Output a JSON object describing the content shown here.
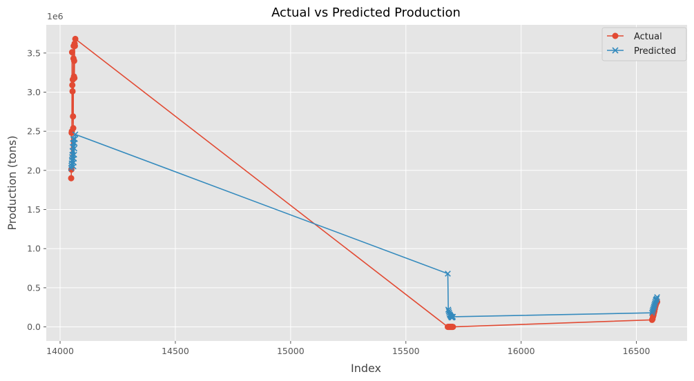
{
  "chart_data": {
    "type": "line",
    "title": "Actual vs Predicted Production",
    "xlabel": "Index",
    "ylabel": "Production (tons)",
    "y_scale_label": "1e6",
    "xlim": [
      13940,
      16720
    ],
    "ylim": [
      -180000,
      3860000
    ],
    "x_ticks": [
      14000,
      14500,
      15000,
      15500,
      16000,
      16500
    ],
    "x_tick_labels": [
      "14000",
      "14500",
      "15000",
      "15500",
      "16000",
      "16500"
    ],
    "y_ticks": [
      0,
      500000,
      1000000,
      1500000,
      2000000,
      2500000,
      3000000,
      3500000
    ],
    "y_tick_labels": [
      "0.0",
      "0.5",
      "1.0",
      "1.5",
      "2.0",
      "2.5",
      "3.0",
      "3.5"
    ],
    "grid": true,
    "legend_position": "top-right",
    "series": [
      {
        "name": "Actual",
        "color": "#E24A33",
        "marker": "circle",
        "points": [
          [
            14048,
            1900000
          ],
          [
            14049,
            2010000
          ],
          [
            14050,
            2480000
          ],
          [
            14051,
            2500000
          ],
          [
            14052,
            3510000
          ],
          [
            14053,
            3090000
          ],
          [
            14054,
            3010000
          ],
          [
            14055,
            3160000
          ],
          [
            14056,
            2690000
          ],
          [
            14057,
            2540000
          ],
          [
            14058,
            3430000
          ],
          [
            14059,
            3590000
          ],
          [
            14060,
            3200000
          ],
          [
            14061,
            3400000
          ],
          [
            14062,
            3180000
          ],
          [
            14063,
            3620000
          ],
          [
            14064,
            3590000
          ],
          [
            14066,
            3680000
          ],
          [
            15682,
            0
          ],
          [
            15684,
            0
          ],
          [
            15686,
            0
          ],
          [
            15688,
            0
          ],
          [
            15690,
            0
          ],
          [
            15692,
            0
          ],
          [
            15694,
            0
          ],
          [
            15696,
            0
          ],
          [
            15698,
            0
          ],
          [
            15700,
            0
          ],
          [
            15702,
            0
          ],
          [
            15704,
            0
          ],
          [
            16568,
            90000
          ],
          [
            16570,
            100000
          ],
          [
            16572,
            130000
          ],
          [
            16574,
            150000
          ],
          [
            16576,
            180000
          ],
          [
            16578,
            200000
          ],
          [
            16580,
            230000
          ],
          [
            16582,
            260000
          ],
          [
            16584,
            280000
          ],
          [
            16586,
            300000
          ],
          [
            16588,
            310000
          ],
          [
            16590,
            320000
          ]
        ]
      },
      {
        "name": "Predicted",
        "color": "#348ABD",
        "marker": "x",
        "points": [
          [
            14048,
            2030000
          ],
          [
            14049,
            2060000
          ],
          [
            14050,
            2090000
          ],
          [
            14051,
            2130000
          ],
          [
            14052,
            2170000
          ],
          [
            14053,
            2200000
          ],
          [
            14054,
            2250000
          ],
          [
            14055,
            2300000
          ],
          [
            14056,
            2350000
          ],
          [
            14057,
            2400000
          ],
          [
            14058,
            2050000
          ],
          [
            14059,
            2100000
          ],
          [
            14060,
            2150000
          ],
          [
            14061,
            2200000
          ],
          [
            14062,
            2280000
          ],
          [
            14063,
            2350000
          ],
          [
            14064,
            2400000
          ],
          [
            14066,
            2460000
          ],
          [
            15682,
            680000
          ],
          [
            15684,
            220000
          ],
          [
            15686,
            200000
          ],
          [
            15688,
            180000
          ],
          [
            15690,
            160000
          ],
          [
            15692,
            150000
          ],
          [
            15694,
            140000
          ],
          [
            15696,
            130000
          ],
          [
            15698,
            120000
          ],
          [
            15700,
            130000
          ],
          [
            15702,
            120000
          ],
          [
            15704,
            130000
          ],
          [
            16568,
            180000
          ],
          [
            16570,
            200000
          ],
          [
            16572,
            220000
          ],
          [
            16574,
            240000
          ],
          [
            16576,
            260000
          ],
          [
            16578,
            280000
          ],
          [
            16580,
            300000
          ],
          [
            16582,
            320000
          ],
          [
            16584,
            340000
          ],
          [
            16586,
            350000
          ],
          [
            16588,
            360000
          ],
          [
            16590,
            380000
          ]
        ]
      }
    ]
  }
}
